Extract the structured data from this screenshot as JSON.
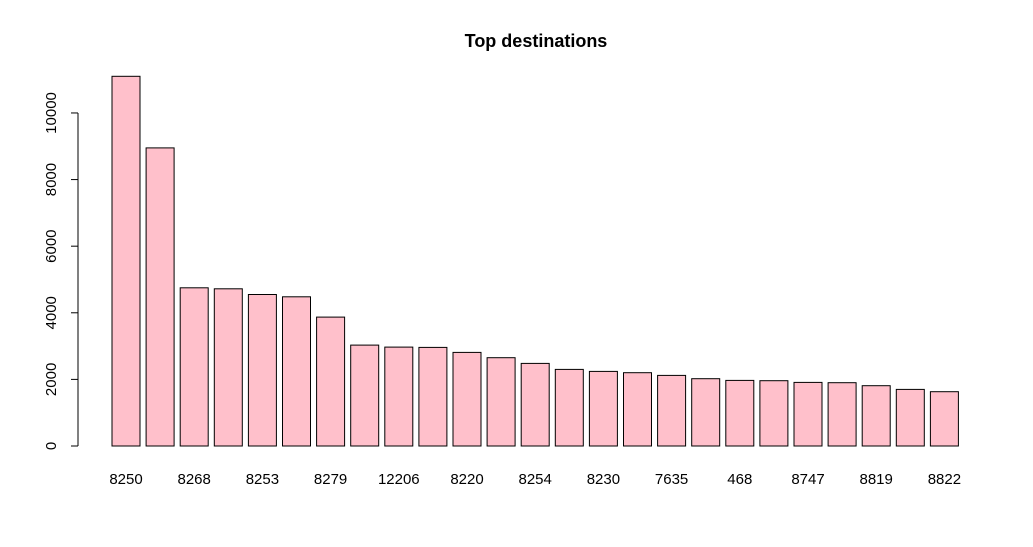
{
  "chart_data": {
    "type": "bar",
    "title": "Top destinations",
    "xlabel": "",
    "ylabel": "",
    "bar_color": "#ffc0cb",
    "bar_border_color": "#000000",
    "ylim": [
      0,
      11200
    ],
    "yticks": [
      0,
      2000,
      4000,
      6000,
      8000,
      10000
    ],
    "categories": [
      "8250",
      "",
      "8268",
      "",
      "8253",
      "",
      "8279",
      "",
      "12206",
      "",
      "8220",
      "",
      "8254",
      "",
      "8230",
      "",
      "7635",
      "",
      "468",
      "",
      "8747",
      "",
      "8819",
      "",
      "8822"
    ],
    "values": [
      11100,
      8950,
      4750,
      4720,
      4550,
      4480,
      3870,
      3030,
      2970,
      2960,
      2810,
      2650,
      2480,
      2300,
      2240,
      2200,
      2120,
      2020,
      1970,
      1960,
      1910,
      1900,
      1810,
      1700,
      1630
    ]
  }
}
